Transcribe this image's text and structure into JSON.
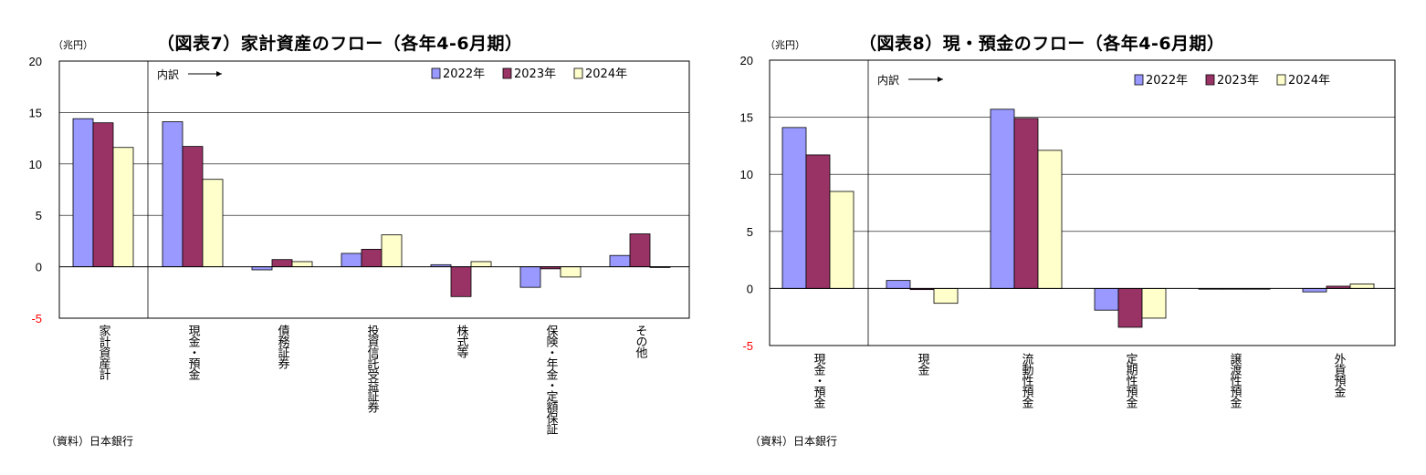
{
  "colors": {
    "s2022": "#9999ff",
    "s2023": "#993366",
    "s2024": "#ffffcc"
  },
  "chart_data": [
    {
      "type": "bar",
      "title": "（図表7）家計資産のフロー（各年4-6月期）",
      "unit": "（兆円）",
      "source": "（資料）日本銀行",
      "breakdown_label": "内訳",
      "ylim": [
        -5,
        20
      ],
      "yticks": [
        "20",
        "15",
        "10",
        "5",
        "0",
        "-5"
      ],
      "categories": [
        "家計資産計",
        "現金・預金",
        "債務証券",
        "投資信託受益証券",
        "株式等",
        "保険・年金・定額保証",
        "その他"
      ],
      "series": [
        {
          "name": "2022年",
          "values": [
            14.4,
            14.1,
            -0.3,
            1.3,
            0.2,
            -2.0,
            1.1
          ]
        },
        {
          "name": "2023年",
          "values": [
            14.0,
            11.7,
            0.7,
            1.7,
            -2.9,
            -0.2,
            3.2
          ]
        },
        {
          "name": "2024年",
          "values": [
            11.6,
            8.5,
            0.5,
            3.1,
            0.5,
            -1.0,
            0.0
          ]
        }
      ],
      "grid": true,
      "legend": "top-right"
    },
    {
      "type": "bar",
      "title": "（図表8）現・預金のフロー（各年4-6月期）",
      "unit": "（兆円）",
      "source": "（資料）日本銀行",
      "breakdown_label": "内訳",
      "ylim": [
        -5,
        20
      ],
      "yticks": [
        "20",
        "15",
        "10",
        "5",
        "0",
        "-5"
      ],
      "categories": [
        "現金・預金",
        "現金",
        "流動性預金",
        "定期性預金",
        "譲渡性預金",
        "外貨預金"
      ],
      "series": [
        {
          "name": "2022年",
          "values": [
            14.1,
            0.7,
            15.7,
            -1.9,
            0.0,
            -0.3
          ]
        },
        {
          "name": "2023年",
          "values": [
            11.7,
            -0.1,
            14.9,
            -3.4,
            0.0,
            0.2
          ]
        },
        {
          "name": "2024年",
          "values": [
            8.5,
            -1.3,
            12.1,
            -2.6,
            0.0,
            0.4
          ]
        }
      ],
      "grid": true,
      "legend": "top-right"
    }
  ]
}
